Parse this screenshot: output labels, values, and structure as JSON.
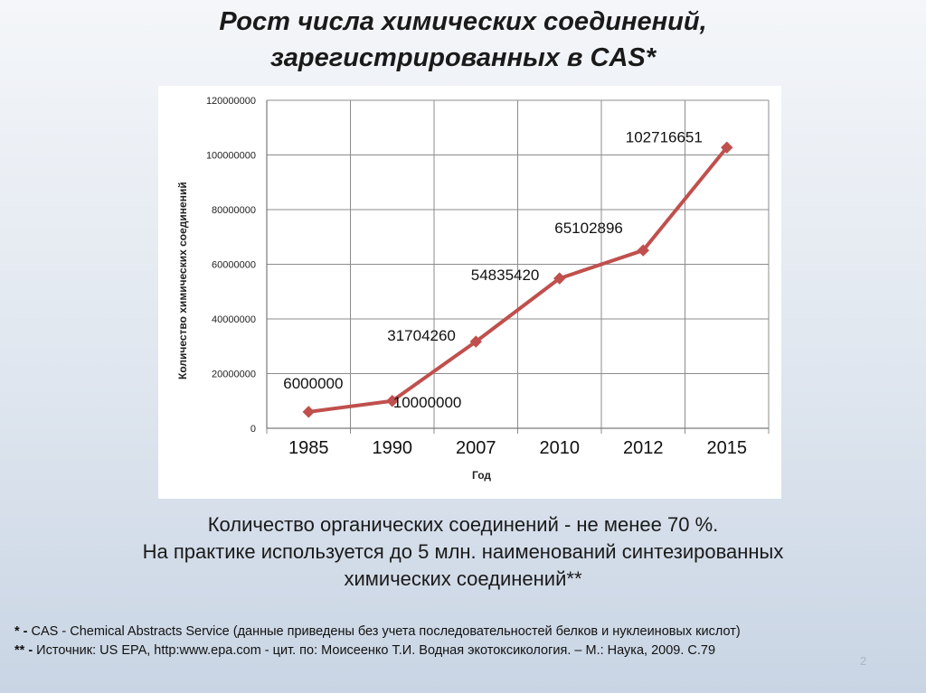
{
  "slide": {
    "title_line1": "Рост числа химических соединений,",
    "title_line2": "зарегистрированных в CAS*",
    "note_line1": "Количество органических соединений  - не менее 70 %.",
    "note_line2": "На практике используется до 5 млн. наименований синтезированных",
    "note_line3": "химических соединений**",
    "footnote1_mark": "* -",
    "footnote1_text": " CAS - Chemical Abstracts Service (данные приведены без учета последовательностей белков и нуклеиновых кислот)",
    "footnote2_mark": "** -",
    "footnote2_text": " Источник: US EPA, http:www.epa.com  - цит. по: Моисеенко Т.И. Водная экотоксикология. – М.: Наука, 2009. С.79",
    "page_number": "2"
  },
  "chart_data": {
    "type": "line",
    "title": "",
    "xlabel": "Год",
    "ylabel": "Количество химических соединений",
    "categories": [
      "1985",
      "1990",
      "2007",
      "2010",
      "2012",
      "2015"
    ],
    "series": [
      {
        "values": [
          6000000,
          10000000,
          31704260,
          54835420,
          65102896,
          102716651
        ],
        "data_labels": [
          "6000000",
          "10000000",
          "31704260",
          "54835420",
          "65102896",
          "102716651"
        ]
      }
    ],
    "ylim": [
      0,
      120000000
    ],
    "y_ticks": [
      "0",
      "20000000",
      "40000000",
      "60000000",
      "80000000",
      "100000000",
      "120000000"
    ],
    "grid": true,
    "line_color": "#c0504d",
    "marker": "diamond"
  }
}
